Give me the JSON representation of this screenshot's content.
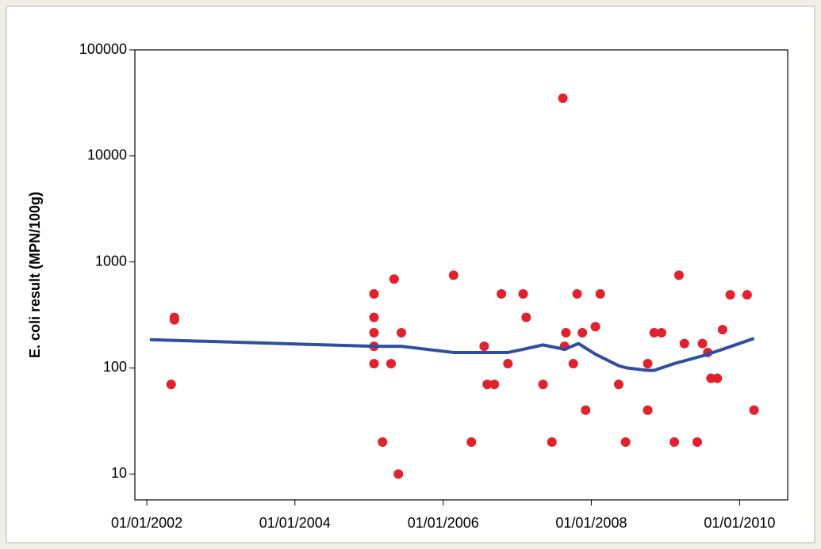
{
  "chart_data": {
    "type": "scatter",
    "ylabel": "E. coli result (MPN/100g)",
    "ylog": true,
    "ylim": [
      5.7,
      100000
    ],
    "yticks": [
      10,
      100,
      1000,
      10000,
      100000
    ],
    "xlim": [
      "2001-11-03",
      "2010-08-26"
    ],
    "xticks": [
      {
        "value": "2002-01-01",
        "label": "01/01/2002"
      },
      {
        "value": "2004-01-01",
        "label": "01/01/2004"
      },
      {
        "value": "2006-01-01",
        "label": "01/01/2006"
      },
      {
        "value": "2008-01-01",
        "label": "01/01/2008"
      },
      {
        "value": "2010-01-01",
        "label": "01/01/2010"
      }
    ],
    "series": [
      {
        "kind": "scatter",
        "color": "#e3202b",
        "x": [
          "2002-05-01",
          "2002-05-17",
          "2002-05-17",
          "2005-01-25",
          "2005-01-25",
          "2005-01-25",
          "2005-01-25",
          "2005-01-25",
          "2005-03-08",
          "2005-04-19",
          "2005-05-04",
          "2005-05-25",
          "2005-06-09",
          "2006-02-21",
          "2006-05-20",
          "2006-07-22",
          "2006-08-06",
          "2006-09-10",
          "2006-10-15",
          "2006-11-16",
          "2007-01-30",
          "2007-02-14",
          "2007-05-08",
          "2007-06-21",
          "2007-08-14",
          "2007-08-22",
          "2007-08-29",
          "2007-10-04",
          "2007-10-23",
          "2007-11-18",
          "2007-12-04",
          "2008-01-21",
          "2008-02-14",
          "2008-05-15",
          "2008-06-18",
          "2008-10-05",
          "2008-10-05",
          "2008-11-06",
          "2008-12-12",
          "2009-02-13",
          "2009-03-08",
          "2009-04-04",
          "2009-06-06",
          "2009-07-02",
          "2009-07-28",
          "2009-08-13",
          "2009-09-13",
          "2009-10-09",
          "2009-11-16",
          "2010-02-07",
          "2010-03-13"
        ],
        "values": [
          70,
          300,
          285,
          500,
          300,
          215,
          160,
          110,
          20,
          110,
          690,
          10,
          215,
          750,
          20,
          160,
          70,
          70,
          500,
          110,
          500,
          300,
          70,
          20,
          35000,
          160,
          215,
          110,
          500,
          215,
          40,
          245,
          500,
          70,
          20,
          110,
          40,
          215,
          215,
          20,
          750,
          170,
          20,
          170,
          140,
          80,
          80,
          230,
          490,
          490,
          40
        ]
      },
      {
        "kind": "line",
        "color": "#2f4f9f",
        "x": [
          "2002-01-16",
          "2005-01-25",
          "2005-06-09",
          "2006-02-21",
          "2006-07-22",
          "2006-11-16",
          "2007-01-30",
          "2007-05-08",
          "2007-08-22",
          "2007-10-30",
          "2008-01-21",
          "2008-05-15",
          "2008-06-25",
          "2008-10-05",
          "2008-11-06",
          "2009-02-13",
          "2009-07-02",
          "2009-10-09",
          "2010-03-13"
        ],
        "values": [
          185,
          160,
          160,
          140,
          140,
          140,
          150,
          165,
          150,
          170,
          135,
          105,
          100,
          95,
          95,
          110,
          130,
          150,
          190
        ]
      }
    ]
  }
}
